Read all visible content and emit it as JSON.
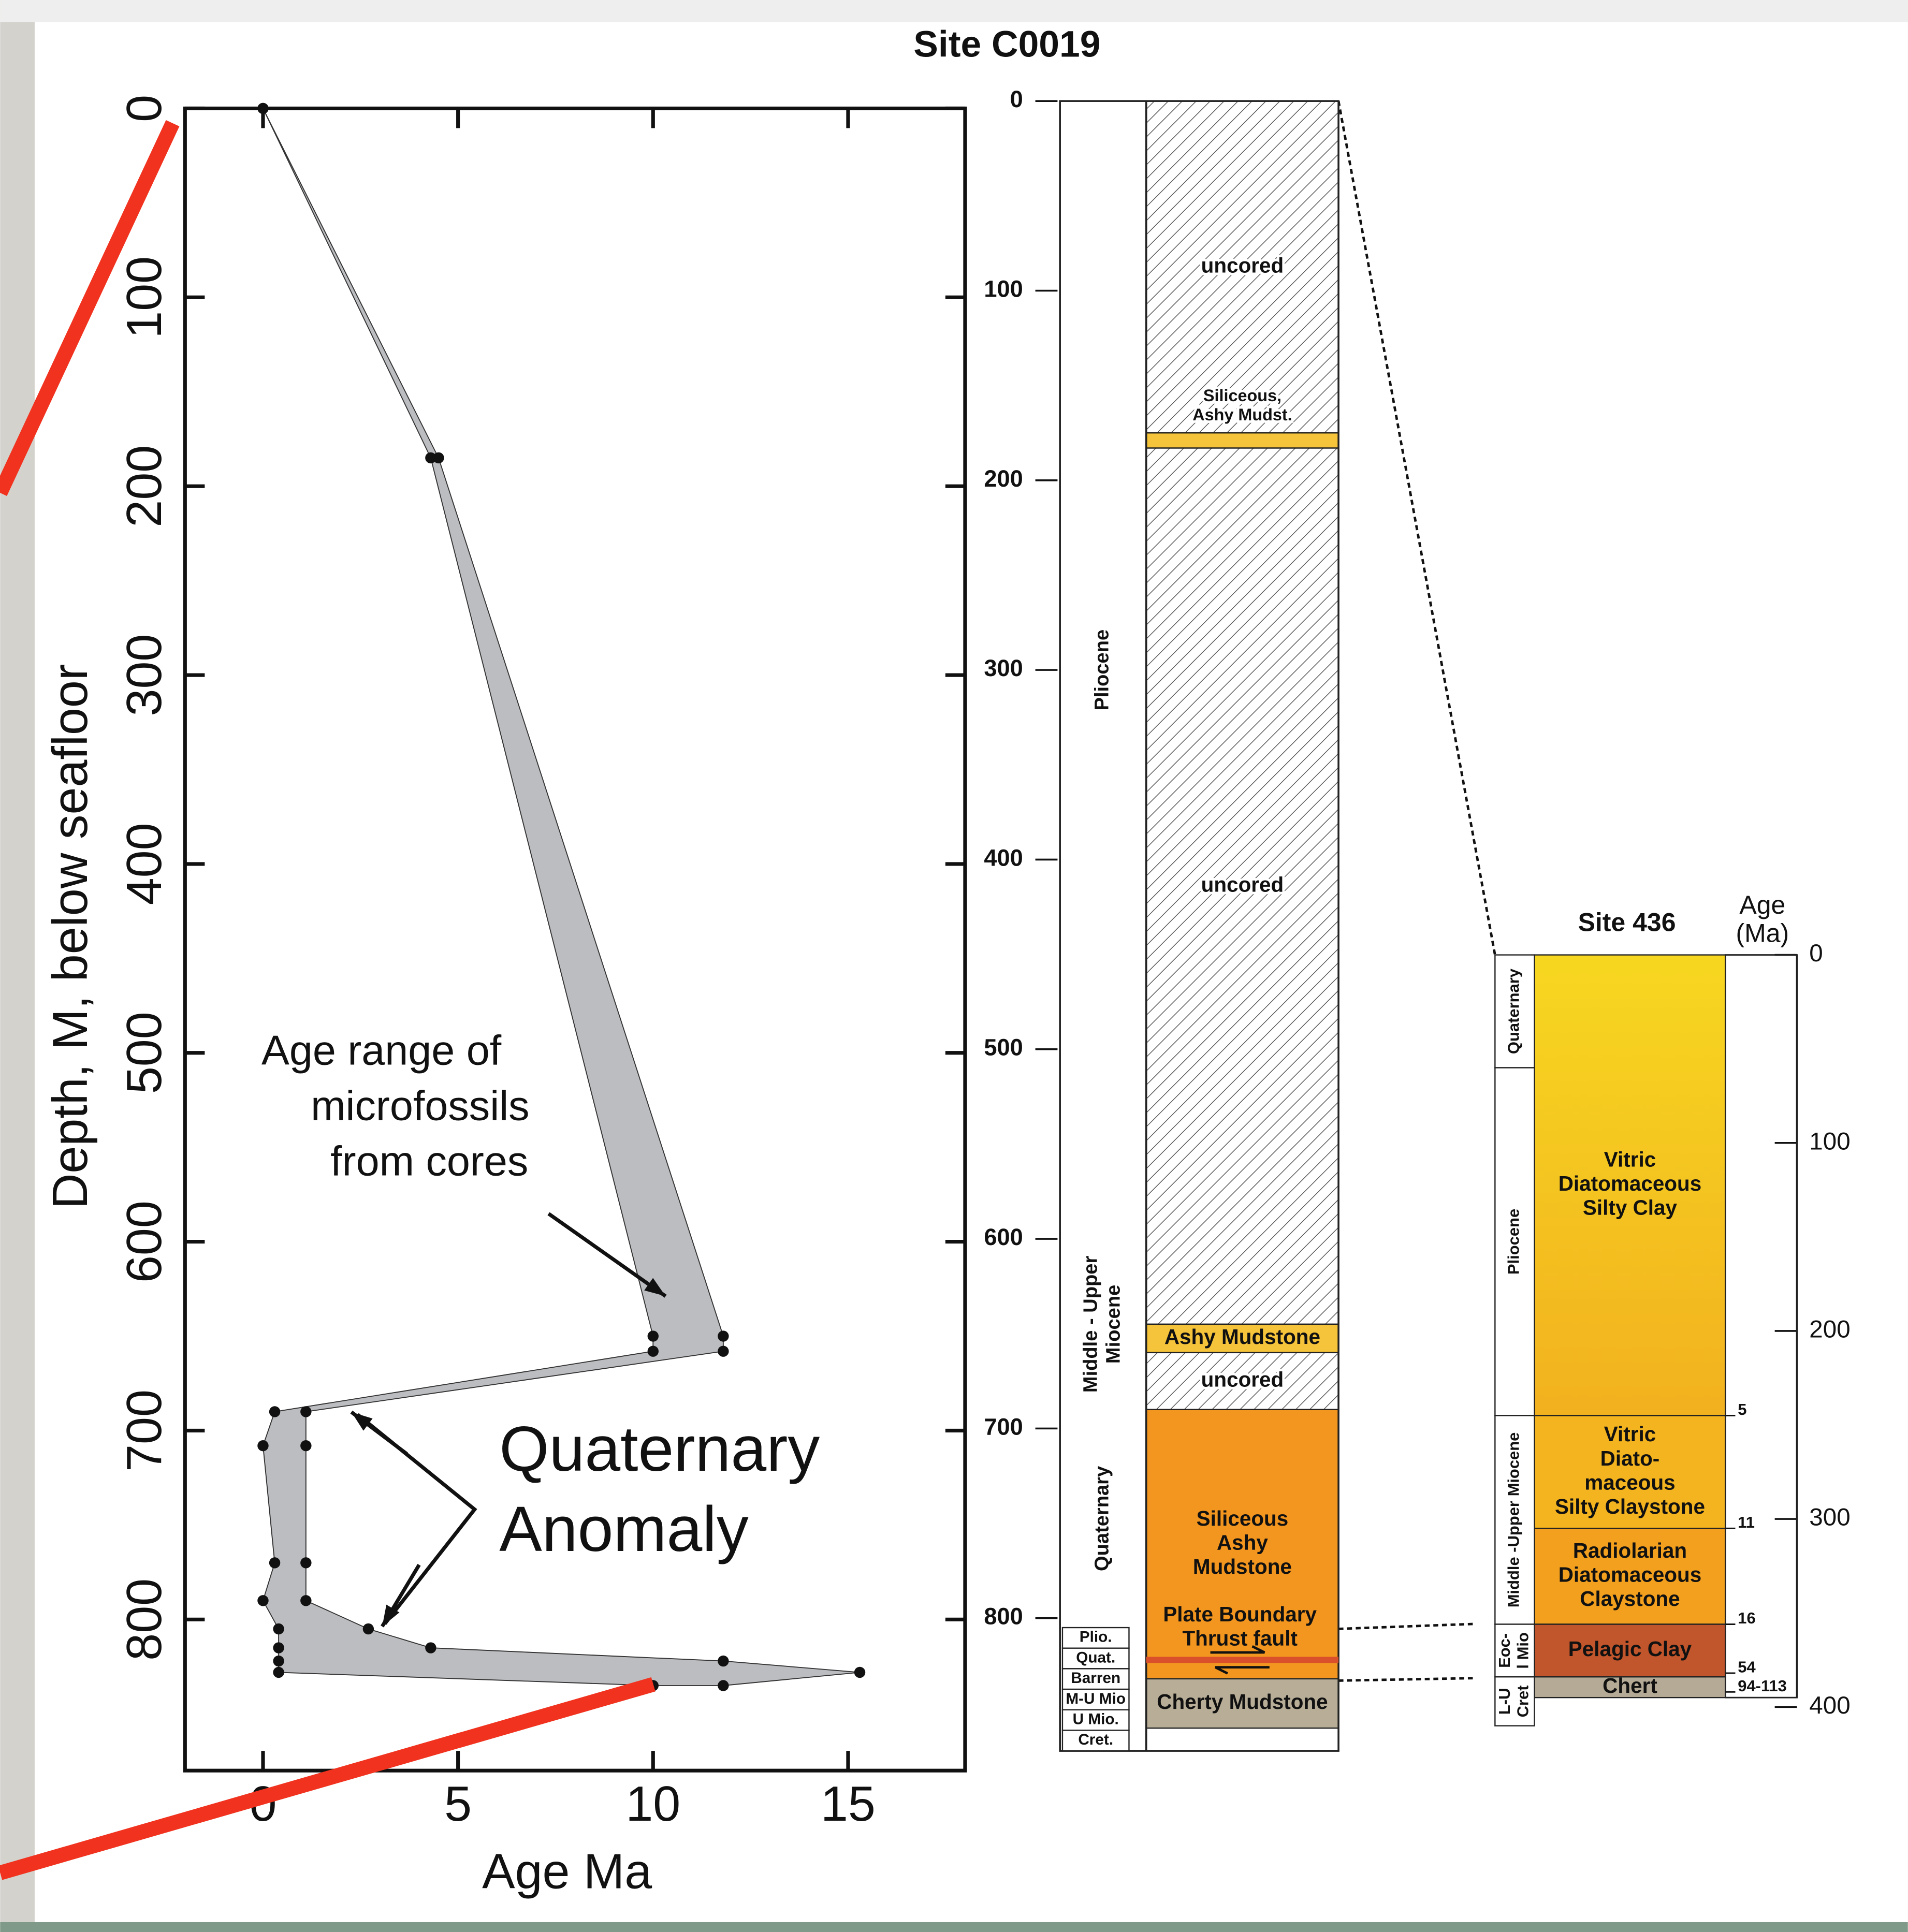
{
  "chart_data": {
    "type": "area",
    "xlabel": "Age Ma",
    "ylabel": "Depth, M, below seafloor",
    "xlim": [
      -2,
      18
    ],
    "ylim": [
      880,
      0
    ],
    "xticks": [
      0,
      5,
      10,
      15
    ],
    "yticks": [
      0,
      100,
      200,
      300,
      400,
      500,
      600,
      700,
      800
    ],
    "depth": [
      0,
      185,
      650,
      658,
      690,
      708,
      770,
      790,
      805,
      815,
      822,
      828,
      835
    ],
    "age_min": [
      0,
      4.3,
      10,
      10,
      0.3,
      0,
      0.3,
      0,
      0.4,
      0.4,
      0.4,
      0.4,
      10
    ],
    "age_max": [
      0,
      4.5,
      11.8,
      11.8,
      1.1,
      1.1,
      1.1,
      1.1,
      2.7,
      4.3,
      11.8,
      15.3,
      11.8
    ],
    "color": "#bcbdc0",
    "annotations": [
      [
        "Age range of",
        "microfossils",
        "from cores"
      ],
      [
        "Quaternary",
        "Anomaly"
      ]
    ]
  },
  "site_c0019": {
    "title": "Site C0019",
    "depth_lim": [
      0,
      870
    ],
    "depth_ticks": [
      0,
      100,
      200,
      300,
      400,
      500,
      600,
      700,
      800
    ],
    "units": [
      {
        "top": 0,
        "bottom": 175,
        "label": [
          "uncored"
        ],
        "fill": "hatch"
      },
      {
        "top": 175,
        "bottom": 183,
        "label": [
          "Siliceous,",
          "Ashy Mudst."
        ],
        "fill": "#f6c43a"
      },
      {
        "top": 183,
        "bottom": 645,
        "label": [
          "uncored"
        ],
        "fill": "hatch"
      },
      {
        "top": 645,
        "bottom": 660,
        "label": [
          "Ashy Mudstone"
        ],
        "fill": "#f6c43a"
      },
      {
        "top": 660,
        "bottom": 690,
        "label": [
          "uncored"
        ],
        "fill": "hatch"
      },
      {
        "top": 690,
        "bottom": 832,
        "label": [
          "Siliceous",
          "Ashy",
          "Mudstone"
        ],
        "fill": "#f3961f"
      },
      {
        "top": 832,
        "bottom": 858,
        "label": [
          "Cherty Mudstone"
        ],
        "fill": "#b8ae98"
      }
    ],
    "fault": {
      "depth": 822,
      "label": [
        "Plate Boundary",
        "Thrust fault"
      ],
      "color": "#d9502a"
    },
    "epochs": [
      {
        "top": 0,
        "bottom": 600,
        "label": [
          "Pliocene"
        ]
      },
      {
        "top": 600,
        "bottom": 690,
        "label": [
          "Middle - Upper",
          "Miocene"
        ]
      },
      {
        "top": 690,
        "bottom": 805,
        "label": [
          "Quaternary"
        ]
      }
    ],
    "sub_epochs": [
      "Plio.",
      "Quat.",
      "Barren",
      "M-U Mio",
      "U Mio.",
      "Cret."
    ]
  },
  "site_436": {
    "title": "Site 436",
    "age_header": [
      "Age",
      "(Ma)"
    ],
    "depth_lim": [
      0,
      405
    ],
    "depth_ticks": [
      0,
      100,
      200,
      300,
      400
    ],
    "units": [
      {
        "top": 0,
        "bottom": 245,
        "label": [
          "Vitric",
          "Diatomaceous",
          "Silty Clay"
        ],
        "fill": [
          "#f7d720",
          "#f2b11f"
        ]
      },
      {
        "top": 245,
        "bottom": 305,
        "label": [
          "Vitric",
          "Diato-",
          "maceous",
          "Silty Claystone"
        ],
        "fill": "#f4b41f"
      },
      {
        "top": 305,
        "bottom": 356,
        "label": [
          "Radiolarian",
          "Diatomaceous",
          "Claystone"
        ],
        "fill": "#f3a01e"
      },
      {
        "top": 356,
        "bottom": 384,
        "label": [
          "Pelagic Clay"
        ],
        "fill": "#c1552b"
      },
      {
        "top": 384,
        "bottom": 395,
        "label": [
          "Chert"
        ],
        "fill": "#b4aa95"
      }
    ],
    "age_marks": [
      {
        "depth": 245,
        "label": "5"
      },
      {
        "depth": 305,
        "label": "11"
      },
      {
        "depth": 356,
        "label": "16"
      },
      {
        "depth": 382,
        "label": "54"
      },
      {
        "depth": 392,
        "label": "94-113"
      }
    ],
    "epochs": [
      {
        "top": 0,
        "bottom": 60,
        "label": [
          "Quaternary"
        ]
      },
      {
        "top": 60,
        "bottom": 245,
        "label": [
          "Pliocene"
        ]
      },
      {
        "top": 245,
        "bottom": 356,
        "label": [
          "Middle -Upper Miocene"
        ]
      },
      {
        "top": 356,
        "bottom": 384,
        "label": [
          "Eoc-",
          "l Mio"
        ]
      },
      {
        "top": 384,
        "bottom": 410,
        "label": [
          "L-U",
          "Cret"
        ]
      }
    ]
  }
}
